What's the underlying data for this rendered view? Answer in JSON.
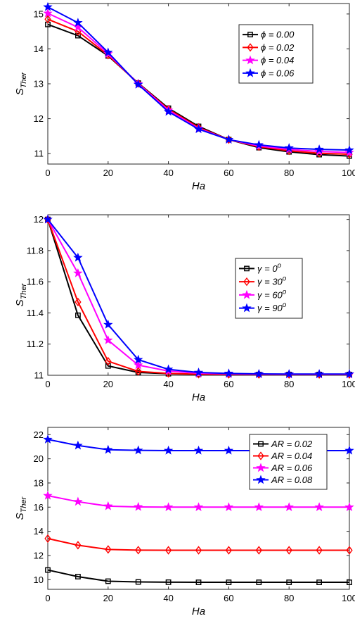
{
  "chart_data": [
    {
      "type": "line",
      "xlabel": "Ha",
      "ylabel": "S",
      "ylabel_sub": "Ther",
      "xlim": [
        0,
        100
      ],
      "ylim": [
        10.7,
        15.3
      ],
      "xticks": [
        0,
        20,
        40,
        60,
        80,
        100
      ],
      "yticks": [
        11,
        12,
        13,
        14,
        15
      ],
      "legend_position": "upper-right",
      "x": [
        0,
        10,
        20,
        30,
        40,
        50,
        60,
        70,
        80,
        90,
        100
      ],
      "series": [
        {
          "name": "ϕ = 0.00",
          "marker": "square",
          "color": "#000000",
          "values": [
            14.7,
            14.38,
            13.8,
            13.02,
            12.3,
            11.78,
            11.4,
            11.17,
            11.05,
            10.97,
            10.93
          ]
        },
        {
          "name": "ϕ = 0.02",
          "marker": "diamond",
          "color": "#ff0000",
          "values": [
            14.85,
            14.5,
            13.82,
            13.01,
            12.27,
            11.75,
            11.4,
            11.2,
            11.08,
            11.01,
            10.98
          ]
        },
        {
          "name": "ϕ = 0.04",
          "marker": "star",
          "color": "#ff00ff",
          "values": [
            15.02,
            14.62,
            13.86,
            13.0,
            12.24,
            11.72,
            11.4,
            11.22,
            11.12,
            11.06,
            11.03
          ]
        },
        {
          "name": "ϕ = 0.06",
          "marker": "star",
          "color": "#0000ff",
          "values": [
            15.2,
            14.75,
            13.9,
            12.98,
            12.2,
            11.7,
            11.4,
            11.25,
            11.16,
            11.12,
            11.1
          ]
        }
      ]
    },
    {
      "type": "line",
      "xlabel": "Ha",
      "ylabel": "S",
      "ylabel_sub": "Ther",
      "xlim": [
        0,
        100
      ],
      "ylim": [
        11,
        12.03
      ],
      "xticks": [
        0,
        20,
        40,
        60,
        80,
        100
      ],
      "yticks": [
        11,
        11.2,
        11.4,
        11.6,
        11.8,
        12
      ],
      "legend_position": "right",
      "x": [
        0,
        10,
        20,
        30,
        40,
        50,
        60,
        70,
        80,
        90,
        100
      ],
      "series": [
        {
          "name": "γ = 0",
          "name_sup": "o",
          "marker": "square",
          "color": "#000000",
          "values": [
            12.0,
            11.385,
            11.06,
            11.018,
            11.01,
            11.006,
            11.005,
            11.005,
            11.005,
            11.005,
            11.005
          ]
        },
        {
          "name": "γ = 30",
          "name_sup": "o",
          "marker": "diamond",
          "color": "#ff0000",
          "values": [
            12.0,
            11.47,
            11.09,
            11.025,
            11.012,
            11.007,
            11.006,
            11.005,
            11.005,
            11.005,
            11.005
          ]
        },
        {
          "name": "γ = 60",
          "name_sup": "o",
          "marker": "star",
          "color": "#ff00ff",
          "values": [
            12.0,
            11.655,
            11.225,
            11.065,
            11.027,
            11.013,
            11.009,
            11.007,
            11.006,
            11.006,
            11.006
          ]
        },
        {
          "name": "γ = 90",
          "name_sup": "o",
          "marker": "star",
          "color": "#0000ff",
          "values": [
            12.0,
            11.755,
            11.325,
            11.1,
            11.038,
            11.018,
            11.012,
            11.009,
            11.008,
            11.008,
            11.008
          ]
        }
      ]
    },
    {
      "type": "line",
      "xlabel": "Ha",
      "ylabel": "S",
      "ylabel_sub": "Ther",
      "xlim": [
        0,
        100
      ],
      "ylim": [
        9.2,
        22.6
      ],
      "xticks": [
        0,
        20,
        40,
        60,
        80,
        100
      ],
      "yticks": [
        10,
        12,
        14,
        16,
        18,
        20,
        22
      ],
      "legend_position": "upper-right",
      "x": [
        0,
        10,
        20,
        30,
        40,
        50,
        60,
        70,
        80,
        90,
        100
      ],
      "series": [
        {
          "name": "AR = 0.02",
          "marker": "square",
          "color": "#000000",
          "values": [
            10.8,
            10.25,
            9.87,
            9.81,
            9.79,
            9.78,
            9.78,
            9.78,
            9.78,
            9.78,
            9.78
          ]
        },
        {
          "name": "AR = 0.04",
          "marker": "diamond",
          "color": "#ff0000",
          "values": [
            13.4,
            12.85,
            12.5,
            12.44,
            12.43,
            12.43,
            12.43,
            12.43,
            12.43,
            12.43,
            12.43
          ]
        },
        {
          "name": "AR = 0.06",
          "marker": "star",
          "color": "#ff00ff",
          "values": [
            16.95,
            16.45,
            16.08,
            16.02,
            16.0,
            16.0,
            16.0,
            16.0,
            16.0,
            16.0,
            16.0
          ]
        },
        {
          "name": "AR = 0.08",
          "marker": "star",
          "color": "#0000ff",
          "values": [
            21.6,
            21.1,
            20.75,
            20.7,
            20.68,
            20.68,
            20.68,
            20.68,
            20.68,
            20.68,
            20.68
          ]
        }
      ]
    }
  ]
}
